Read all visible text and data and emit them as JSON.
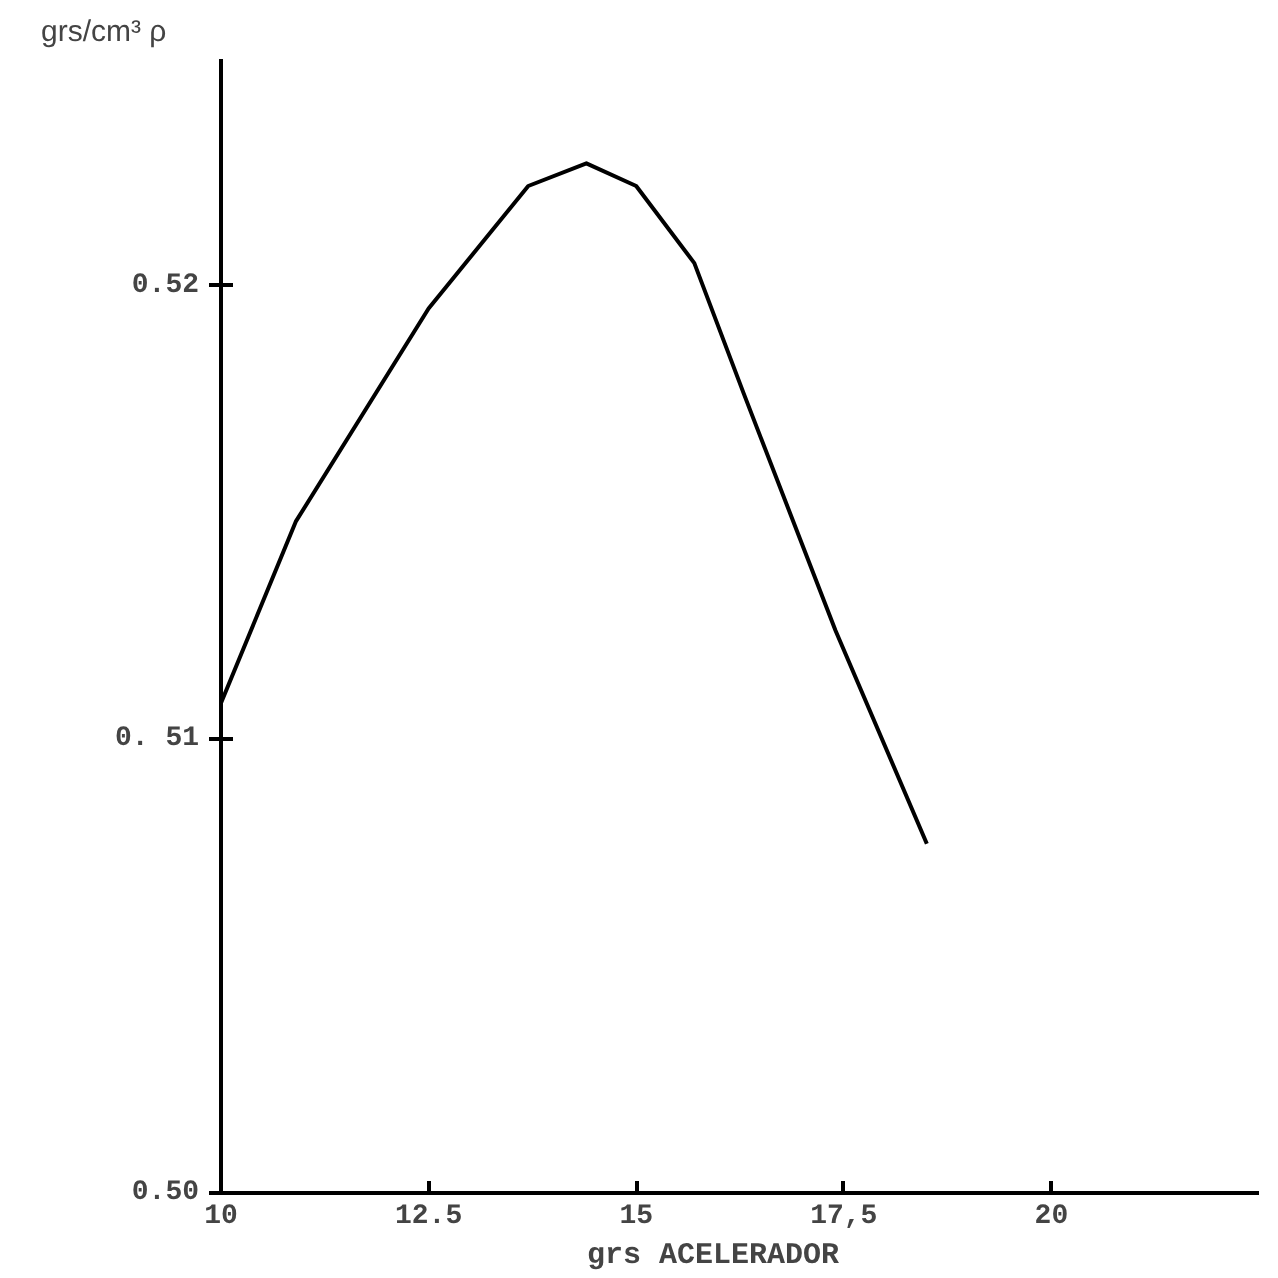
{
  "chart_data": {
    "type": "line",
    "ylabel": "grs/cm³ ρ",
    "xlabel": "grs    ACELERADOR",
    "x": [
      10,
      10.9,
      12.5,
      13.7,
      14.4,
      15,
      15.7,
      16.3,
      17.4,
      18.5
    ],
    "series": [
      {
        "color": "#000000",
        "values": [
          0.5108,
          0.5148,
          0.5195,
          0.5222,
          0.5227,
          0.5222,
          0.5205,
          0.5176,
          0.5124,
          0.5077
        ]
      }
    ],
    "xlim": [
      10,
      22.5
    ],
    "ylim": [
      0.5,
      0.525
    ],
    "xticks": [
      10,
      {
        "value": 12.5,
        "label": "12.5"
      },
      15,
      {
        "value": 17.5,
        "label": "17,5"
      },
      20
    ],
    "yticks": [
      {
        "value": 0.5,
        "label": "0.50"
      },
      {
        "value": 0.51,
        "label": "0. 51"
      },
      {
        "value": 0.52,
        "label": "0.52"
      }
    ],
    "grid": false
  }
}
